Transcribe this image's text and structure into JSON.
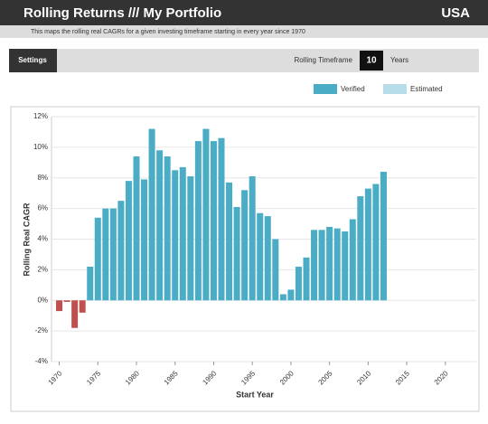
{
  "header": {
    "title": "Rolling Returns /// My Portfolio",
    "region": "USA",
    "subtitle": "This maps the rolling real CAGRs for a given investing timeframe starting in every year since 1970"
  },
  "settings": {
    "button": "Settings",
    "label": "Rolling Timeframe",
    "value": 10,
    "unit": "Years"
  },
  "chart_data": {
    "type": "bar",
    "legend": [
      {
        "name": "Verified",
        "color": "#4bacc6"
      },
      {
        "name": "Estimated",
        "color": "#b7dde8"
      }
    ],
    "color": "#4bacc6",
    "negative_color": "#c0504d",
    "x": [
      1970,
      1971,
      1972,
      1973,
      1974,
      1975,
      1976,
      1977,
      1978,
      1979,
      1980,
      1981,
      1982,
      1983,
      1984,
      1985,
      1986,
      1987,
      1988,
      1989,
      1990,
      1991,
      1992,
      1993,
      1994,
      1995,
      1996,
      1997,
      1998,
      1999,
      2000,
      2001,
      2002,
      2003,
      2004,
      2005,
      2006,
      2007,
      2008,
      2009,
      2010,
      2011,
      2012
    ],
    "values": [
      -0.7,
      -0.1,
      -1.8,
      -0.8,
      2.2,
      5.4,
      6.0,
      6.0,
      6.5,
      7.8,
      9.4,
      7.9,
      11.2,
      9.8,
      9.4,
      8.5,
      8.7,
      8.1,
      10.4,
      11.2,
      10.4,
      10.6,
      7.7,
      6.1,
      7.2,
      8.1,
      5.7,
      5.5,
      4.0,
      0.4,
      0.7,
      2.2,
      2.8,
      4.6,
      4.6,
      4.8,
      4.7,
      4.5,
      5.3,
      6.8,
      7.3,
      7.6,
      8.4
    ],
    "xlabel": "Start Year",
    "ylabel": "Rolling Real CAGR",
    "xlim": [
      1969,
      2024
    ],
    "xticks": [
      1970,
      1975,
      1980,
      1985,
      1990,
      1995,
      2000,
      2005,
      2010,
      2015,
      2020
    ],
    "ylim": [
      -4,
      12
    ],
    "yticks": [
      {
        "value": -4,
        "label": "-4%"
      },
      {
        "value": -2,
        "label": "-2%"
      },
      {
        "value": 0,
        "label": "0%"
      },
      {
        "value": 2,
        "label": "2%"
      },
      {
        "value": 4,
        "label": "4%"
      },
      {
        "value": 6,
        "label": "6%"
      },
      {
        "value": 8,
        "label": "8%"
      },
      {
        "value": 10,
        "label": "10%"
      },
      {
        "value": 12,
        "label": "12%"
      }
    ],
    "grid": true
  }
}
